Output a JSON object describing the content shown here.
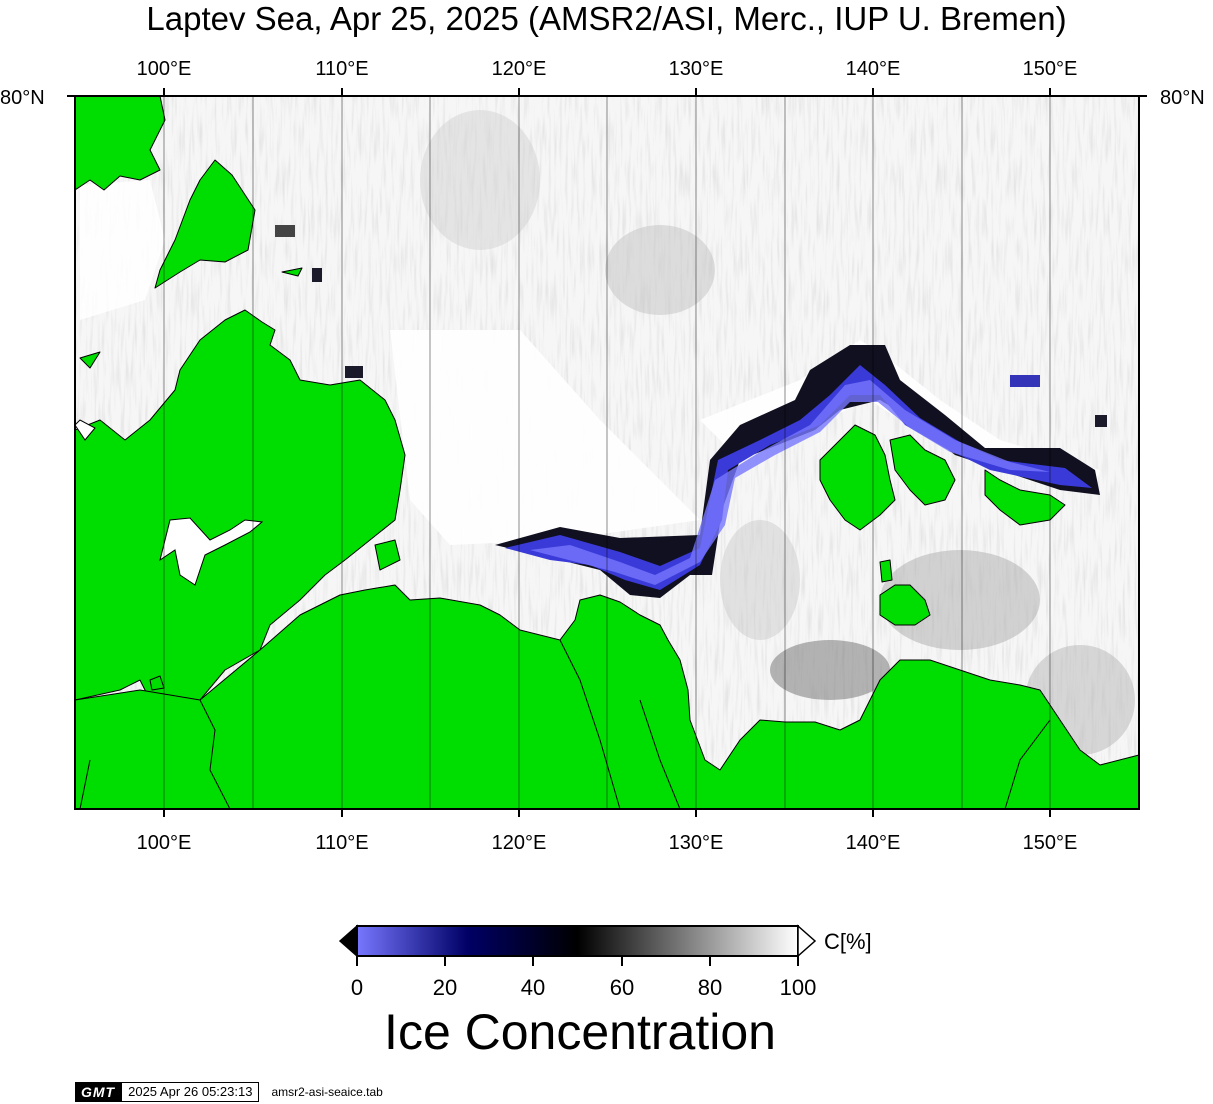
{
  "title": "Laptev Sea, Apr 25, 2025 (AMSR2/ASI, Merc., IUP U. Bremen)",
  "lon_labels": [
    "100°E",
    "110°E",
    "120°E",
    "130°E",
    "140°E",
    "150°E"
  ],
  "lat_label": "80°N",
  "colorbar": {
    "unit_label": "C[%]",
    "ticks": [
      "0",
      "20",
      "40",
      "60",
      "80",
      "100"
    ],
    "title": "Ice Concentration",
    "colors": [
      "#7777ff",
      "#000066",
      "#000000",
      "#888888",
      "#ffffff"
    ]
  },
  "colors": {
    "land": "#00dd00",
    "water": "#ffffff"
  },
  "footer": {
    "logo": "GMT",
    "timestamp": "2025 Apr 26 05:23:13",
    "source": "amsr2-asi-seaice.tab"
  }
}
